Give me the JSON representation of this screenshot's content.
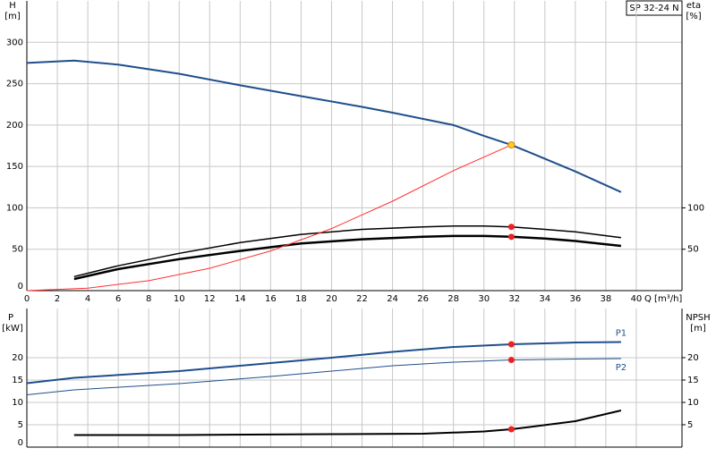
{
  "chart_data": [
    {
      "type": "line",
      "title": "SP 32-24 N",
      "ylabel": "H",
      "yunit": "[m]",
      "y2label": "eta",
      "y2unit": "[%]",
      "xlabel": "Q [m³/h]",
      "xlim": [
        0,
        43
      ],
      "ylim": [
        0,
        350
      ],
      "y2lim": [
        0,
        350
      ],
      "xticks": [
        0,
        2,
        4,
        6,
        8,
        10,
        12,
        14,
        16,
        18,
        20,
        22,
        24,
        26,
        28,
        30,
        32,
        34,
        36,
        38,
        40
      ],
      "yticks": [
        0,
        50,
        100,
        150,
        200,
        250,
        300
      ],
      "y2ticks": [
        50,
        100
      ],
      "grid": true,
      "series": [
        {
          "color": "#1f4e8c",
          "width": 2,
          "x": [
            0,
            3.1,
            6,
            10,
            14,
            18,
            22,
            24,
            28,
            30,
            31.8,
            33,
            36,
            39
          ],
          "values": [
            275,
            278,
            273,
            262,
            248,
            235,
            222,
            215,
            200,
            187,
            176,
            167,
            144,
            119
          ]
        },
        {
          "color": "#000000",
          "width": 1.5,
          "axis": "y2",
          "x": [
            3.1,
            6,
            10,
            14,
            18,
            22,
            26,
            28,
            30,
            31.8,
            34,
            36,
            39
          ],
          "values": [
            17,
            30,
            45,
            58,
            68,
            74,
            77,
            78,
            78,
            77,
            74,
            71,
            64
          ]
        },
        {
          "color": "#000000",
          "width": 2.5,
          "axis": "y2",
          "x": [
            3.1,
            6,
            10,
            14,
            18,
            22,
            26,
            28,
            30,
            31.8,
            34,
            36,
            39
          ],
          "values": [
            14,
            26,
            38,
            48,
            57,
            62,
            65,
            66,
            66,
            65,
            63,
            60,
            54
          ]
        },
        {
          "color": "#ff3030",
          "width": 1,
          "x": [
            0,
            4,
            8,
            12,
            16,
            20,
            24,
            28,
            31.8
          ],
          "values": [
            0,
            3,
            12,
            27,
            48,
            75,
            108,
            145,
            176
          ]
        }
      ],
      "points": [
        {
          "x": 31.8,
          "y": 77,
          "color": "#ee2020",
          "axis": "y2"
        },
        {
          "x": 31.8,
          "y": 65,
          "color": "#ee2020",
          "axis": "y2"
        },
        {
          "x": 31.8,
          "y": 176,
          "color": "#ffd020"
        }
      ]
    },
    {
      "type": "line",
      "ylabel": "P",
      "yunit": "[kW]",
      "y2label": "NPSH",
      "y2unit": "[m]",
      "xlim": [
        0,
        43
      ],
      "ylim": [
        0,
        31
      ],
      "y2lim": [
        0,
        31
      ],
      "xgrid": [
        0,
        2,
        4,
        6,
        8,
        10,
        12,
        14,
        16,
        18,
        20,
        22,
        24,
        26,
        28,
        30,
        32,
        34,
        36,
        38,
        40
      ],
      "yticks": [
        0,
        5,
        10,
        15,
        20
      ],
      "y2ticks": [
        5,
        10,
        15,
        20
      ],
      "grid": true,
      "series": [
        {
          "name": "P1",
          "color": "#1f4e8c",
          "width": 2,
          "x": [
            0,
            3.1,
            10,
            16,
            20,
            24,
            28,
            31.8,
            36,
            39
          ],
          "values": [
            14.3,
            15.5,
            17,
            18.8,
            20,
            21.3,
            22.4,
            23,
            23.4,
            23.5
          ]
        },
        {
          "name": "P2",
          "color": "#1f4e8c",
          "width": 1,
          "x": [
            0,
            3.1,
            10,
            16,
            20,
            24,
            28,
            31.8,
            36,
            39
          ],
          "values": [
            11.7,
            12.8,
            14.2,
            15.8,
            17,
            18.2,
            19,
            19.5,
            19.7,
            19.8
          ]
        },
        {
          "color": "#000000",
          "width": 2,
          "axis": "y2",
          "x": [
            3.1,
            10,
            20,
            26,
            30,
            31.8,
            33,
            36,
            39
          ],
          "values": [
            2.7,
            2.7,
            2.9,
            3.0,
            3.5,
            4.0,
            4.5,
            5.8,
            8.2
          ]
        }
      ],
      "points": [
        {
          "x": 31.8,
          "y": 23,
          "color": "#ee2020"
        },
        {
          "x": 31.8,
          "y": 19.5,
          "color": "#ee2020"
        },
        {
          "x": 31.8,
          "y": 4.0,
          "color": "#ee2020",
          "axis": "y2"
        }
      ]
    }
  ]
}
